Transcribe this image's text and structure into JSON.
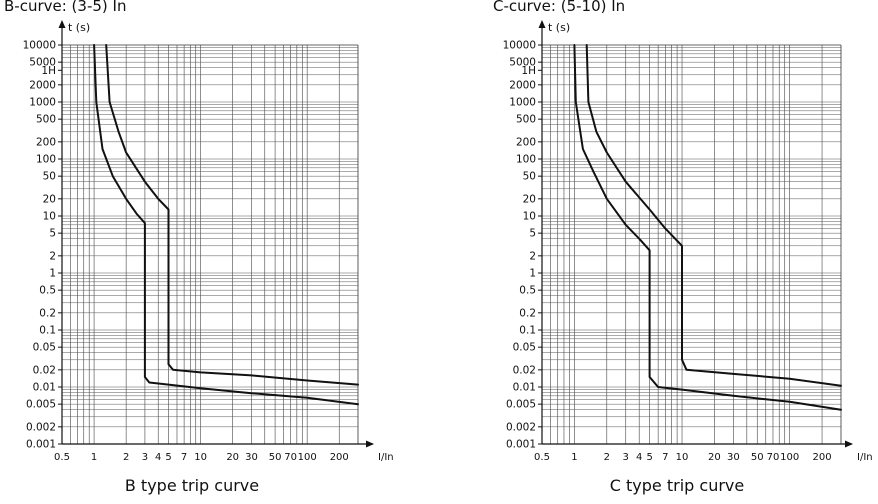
{
  "chart_data": [
    {
      "type": "line",
      "title": "B-curve: (3-5) In",
      "caption": "B type trip curve",
      "ylabel": "t (s)",
      "xlabel": "I/In",
      "x_scale": "log",
      "y_scale": "log",
      "xlim": [
        0.5,
        300
      ],
      "ylim": [
        0.001,
        10000
      ],
      "x_ticks": [
        {
          "value": 0.5,
          "label": "0.5"
        },
        {
          "value": 1,
          "label": "1"
        },
        {
          "value": 2,
          "label": "2"
        },
        {
          "value": 3,
          "label": "3"
        },
        {
          "value": 4,
          "label": "4"
        },
        {
          "value": 5,
          "label": "5"
        },
        {
          "value": 7,
          "label": "7"
        },
        {
          "value": 10,
          "label": "10"
        },
        {
          "value": 20,
          "label": "20"
        },
        {
          "value": 30,
          "label": "30"
        },
        {
          "value": 50,
          "label": "50"
        },
        {
          "value": 70,
          "label": "70"
        },
        {
          "value": 100,
          "label": "100"
        },
        {
          "value": 200,
          "label": "200"
        }
      ],
      "y_ticks": [
        {
          "value": 10000,
          "label": "10000"
        },
        {
          "value": 5000,
          "label": "5000"
        },
        {
          "value": 3600,
          "label": "1H"
        },
        {
          "value": 2000,
          "label": "2000"
        },
        {
          "value": 1000,
          "label": "1000"
        },
        {
          "value": 500,
          "label": "500"
        },
        {
          "value": 200,
          "label": "200"
        },
        {
          "value": 100,
          "label": "100"
        },
        {
          "value": 50,
          "label": "50"
        },
        {
          "value": 20,
          "label": "20"
        },
        {
          "value": 10,
          "label": "10"
        },
        {
          "value": 5,
          "label": "5"
        },
        {
          "value": 2,
          "label": "2"
        },
        {
          "value": 1,
          "label": "1"
        },
        {
          "value": 0.5,
          "label": "0.5"
        },
        {
          "value": 0.2,
          "label": "0.2"
        },
        {
          "value": 0.1,
          "label": "0.1"
        },
        {
          "value": 0.05,
          "label": "0.05"
        },
        {
          "value": 0.02,
          "label": "0.02"
        },
        {
          "value": 0.01,
          "label": "0.01"
        },
        {
          "value": 0.005,
          "label": "0.005"
        },
        {
          "value": 0.002,
          "label": "0.002"
        },
        {
          "value": 0.001,
          "label": "0.001"
        }
      ],
      "grid": true,
      "series": [
        {
          "points": [
            [
              1,
              10000
            ],
            [
              1.05,
              1000
            ],
            [
              1.2,
              150
            ],
            [
              1.5,
              50
            ],
            [
              2,
              20
            ],
            [
              2.5,
              11
            ],
            [
              3,
              7.5
            ],
            [
              3,
              0.015
            ],
            [
              3.3,
              0.012
            ],
            [
              5,
              0.011
            ],
            [
              10,
              0.0095
            ],
            [
              30,
              0.0078
            ],
            [
              100,
              0.0065
            ],
            [
              300,
              0.005
            ]
          ]
        },
        {
          "points": [
            [
              1.3,
              10000
            ],
            [
              1.4,
              1000
            ],
            [
              1.7,
              300
            ],
            [
              2,
              130
            ],
            [
              3,
              40
            ],
            [
              4,
              20
            ],
            [
              5,
              13
            ],
            [
              5,
              0.025
            ],
            [
              5.5,
              0.02
            ],
            [
              10,
              0.018
            ],
            [
              30,
              0.016
            ],
            [
              100,
              0.013
            ],
            [
              300,
              0.011
            ]
          ]
        }
      ]
    },
    {
      "type": "line",
      "title": "C-curve: (5-10) In",
      "caption": "C type trip curve",
      "ylabel": "t (s)",
      "xlabel": "I/In",
      "x_scale": "log",
      "y_scale": "log",
      "xlim": [
        0.5,
        300
      ],
      "ylim": [
        0.001,
        10000
      ],
      "x_ticks": [
        {
          "value": 0.5,
          "label": "0.5"
        },
        {
          "value": 1,
          "label": "1"
        },
        {
          "value": 2,
          "label": "2"
        },
        {
          "value": 3,
          "label": "3"
        },
        {
          "value": 4,
          "label": "4"
        },
        {
          "value": 5,
          "label": "5"
        },
        {
          "value": 7,
          "label": "7"
        },
        {
          "value": 10,
          "label": "10"
        },
        {
          "value": 20,
          "label": "20"
        },
        {
          "value": 30,
          "label": "30"
        },
        {
          "value": 50,
          "label": "50"
        },
        {
          "value": 70,
          "label": "70"
        },
        {
          "value": 100,
          "label": "100"
        },
        {
          "value": 200,
          "label": "200"
        }
      ],
      "y_ticks": [
        {
          "value": 10000,
          "label": "10000"
        },
        {
          "value": 5000,
          "label": "5000"
        },
        {
          "value": 3600,
          "label": "1H"
        },
        {
          "value": 2000,
          "label": "2000"
        },
        {
          "value": 1000,
          "label": "1000"
        },
        {
          "value": 500,
          "label": "500"
        },
        {
          "value": 200,
          "label": "200"
        },
        {
          "value": 100,
          "label": "100"
        },
        {
          "value": 50,
          "label": "50"
        },
        {
          "value": 20,
          "label": "20"
        },
        {
          "value": 10,
          "label": "10"
        },
        {
          "value": 5,
          "label": "5"
        },
        {
          "value": 2,
          "label": "2"
        },
        {
          "value": 1,
          "label": "1"
        },
        {
          "value": 0.5,
          "label": "0.5"
        },
        {
          "value": 0.2,
          "label": "0.2"
        },
        {
          "value": 0.1,
          "label": "0.1"
        },
        {
          "value": 0.05,
          "label": "0.05"
        },
        {
          "value": 0.02,
          "label": "0.02"
        },
        {
          "value": 0.01,
          "label": "0.01"
        },
        {
          "value": 0.005,
          "label": "0.005"
        },
        {
          "value": 0.002,
          "label": "0.002"
        },
        {
          "value": 0.001,
          "label": "0.001"
        }
      ],
      "grid": true,
      "series": [
        {
          "points": [
            [
              1,
              10000
            ],
            [
              1.03,
              1000
            ],
            [
              1.2,
              150
            ],
            [
              1.5,
              60
            ],
            [
              2,
              20
            ],
            [
              3,
              7
            ],
            [
              4,
              4
            ],
            [
              5,
              2.5
            ],
            [
              5,
              0.015
            ],
            [
              6,
              0.01
            ],
            [
              10,
              0.009
            ],
            [
              30,
              0.007
            ],
            [
              100,
              0.0055
            ],
            [
              300,
              0.004
            ]
          ]
        },
        {
          "points": [
            [
              1.3,
              10000
            ],
            [
              1.35,
              1000
            ],
            [
              1.6,
              300
            ],
            [
              2,
              130
            ],
            [
              3,
              40
            ],
            [
              5,
              13
            ],
            [
              7,
              6
            ],
            [
              10,
              3
            ],
            [
              10,
              0.03
            ],
            [
              11,
              0.02
            ],
            [
              30,
              0.017
            ],
            [
              100,
              0.014
            ],
            [
              300,
              0.0105
            ]
          ]
        }
      ]
    }
  ]
}
